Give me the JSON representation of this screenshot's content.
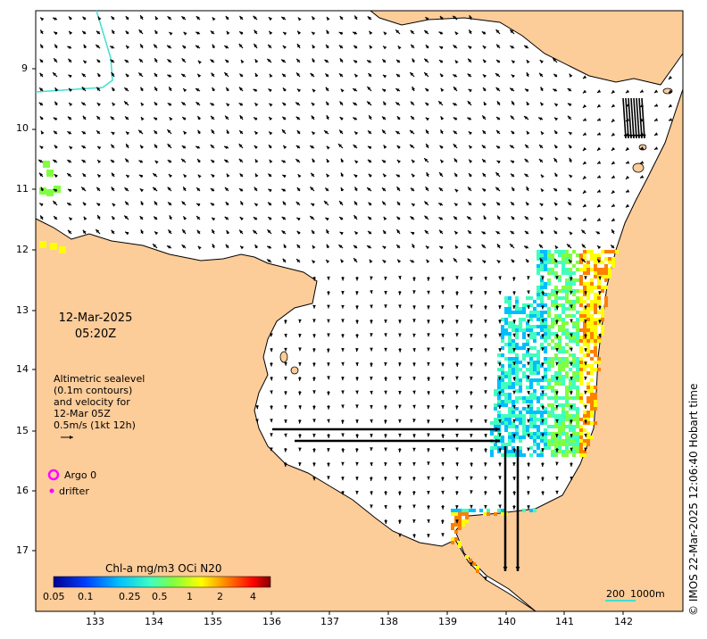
{
  "map": {
    "date_line1": "12-Mar-2025",
    "date_line2": "05:20Z",
    "info_lines": [
      "Altimetric sealevel",
      "(0.1m contours)",
      "and velocity for",
      "12-Mar 05Z",
      "0.5m/s (1kt 12h)"
    ],
    "legend": {
      "argo_label": "Argo 0",
      "drifter_label": "drifter",
      "argo_color": "#ff00ff",
      "drifter_color": "#ff00ff"
    },
    "y_labels": [
      "9",
      "10",
      "11",
      "12",
      "13",
      "14",
      "15",
      "16",
      "17"
    ],
    "x_labels": [
      "133",
      "134",
      "135",
      "136",
      "137",
      "138",
      "139",
      "140",
      "141",
      "142"
    ],
    "colorbar": {
      "title": "Chl-a mg/m3 OCi N20",
      "ticks": [
        "0.05",
        "0.1",
        "0.25",
        "0.5",
        "1",
        "2",
        "4"
      ],
      "colors": [
        "#00008f",
        "#0040ff",
        "#00bfff",
        "#40ffbf",
        "#80ff40",
        "#ffff00",
        "#ff8000",
        "#ff0000",
        "#800000"
      ]
    },
    "scale_bar": {
      "label_left": "200",
      "label_right": "1000m",
      "color": "#40e0d0"
    },
    "credit": "© IMOS 22-Mar-2025 12:06:40 Hobart time",
    "land_color": "#fccc99",
    "contour_color": "#40e0d0"
  }
}
